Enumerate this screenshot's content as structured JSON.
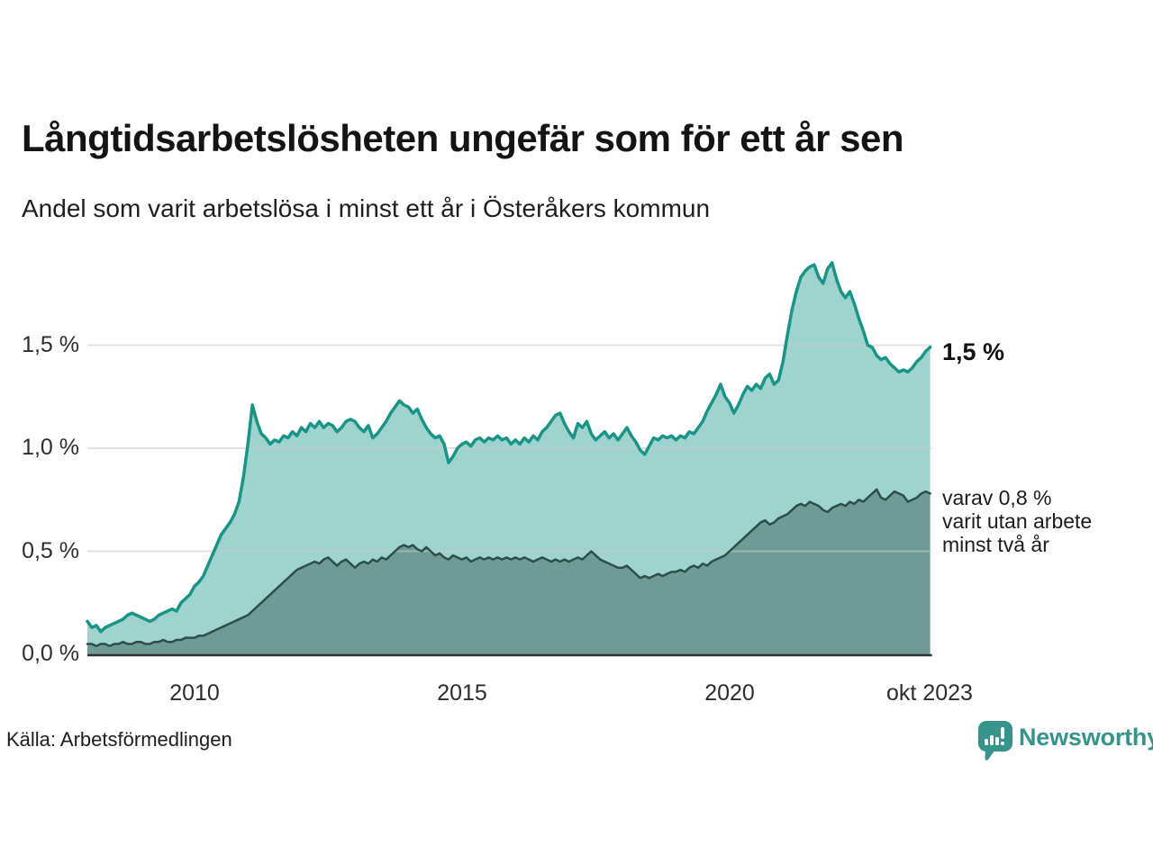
{
  "title": "Långtidsarbetslösheten ungefär som för ett år sen",
  "subtitle": "Andel som varit arbetslösa i minst ett år i Österåkers kommun",
  "source": "Källa: Arbetsförmedlingen",
  "brand": {
    "name": "Newsworthy",
    "color": "#37948b",
    "icon": "bar-chart-speech-bubble"
  },
  "annotations": {
    "latest_total": "1,5 %",
    "two_years_lines": [
      "varav 0,8 %",
      "varit utan arbete",
      "minst två år"
    ]
  },
  "chart_data": {
    "type": "area",
    "title": "Långtidsarbetslösheten ungefär som för ett år sen",
    "xlabel": "",
    "ylabel": "",
    "frequency": "monthly",
    "x_start": "jan 2008",
    "x_end": "okt 2023",
    "x_tick_labels": [
      "2010",
      "2015",
      "2020",
      "okt 2023"
    ],
    "x_tick_years": [
      2010.0,
      2015.0,
      2020.0,
      2023.75
    ],
    "y_tick_labels": [
      "0,0 %",
      "0,5 %",
      "1,0 %",
      "1,5 %"
    ],
    "y_tick_values": [
      0,
      0.5,
      1.0,
      1.5
    ],
    "ylim": [
      0,
      1.95
    ],
    "grid": true,
    "grid_color": "#c9c9c9",
    "axis_line_color": "#2f2f2f",
    "legend_position": "none",
    "series": [
      {
        "name": "Arbetslösa minst ett år",
        "line_color": "#1a9486",
        "fill_color": "#9fd4ce",
        "latest_value": 1.5,
        "values": [
          0.16,
          0.13,
          0.14,
          0.11,
          0.13,
          0.14,
          0.15,
          0.16,
          0.17,
          0.19,
          0.2,
          0.19,
          0.18,
          0.17,
          0.16,
          0.17,
          0.19,
          0.2,
          0.21,
          0.22,
          0.21,
          0.25,
          0.27,
          0.29,
          0.33,
          0.35,
          0.38,
          0.43,
          0.48,
          0.53,
          0.58,
          0.61,
          0.64,
          0.68,
          0.74,
          0.86,
          1.02,
          1.21,
          1.13,
          1.07,
          1.05,
          1.02,
          1.04,
          1.03,
          1.06,
          1.05,
          1.08,
          1.06,
          1.1,
          1.08,
          1.12,
          1.1,
          1.13,
          1.1,
          1.12,
          1.11,
          1.08,
          1.1,
          1.13,
          1.14,
          1.13,
          1.1,
          1.08,
          1.11,
          1.05,
          1.07,
          1.1,
          1.13,
          1.17,
          1.2,
          1.23,
          1.21,
          1.2,
          1.17,
          1.19,
          1.14,
          1.1,
          1.07,
          1.05,
          1.06,
          1.02,
          0.93,
          0.96,
          1.0,
          1.02,
          1.03,
          1.01,
          1.04,
          1.05,
          1.03,
          1.05,
          1.04,
          1.06,
          1.04,
          1.05,
          1.02,
          1.04,
          1.02,
          1.05,
          1.03,
          1.06,
          1.04,
          1.08,
          1.1,
          1.13,
          1.16,
          1.17,
          1.12,
          1.08,
          1.05,
          1.12,
          1.1,
          1.13,
          1.07,
          1.04,
          1.06,
          1.08,
          1.05,
          1.07,
          1.04,
          1.07,
          1.1,
          1.06,
          1.03,
          0.99,
          0.97,
          1.01,
          1.05,
          1.04,
          1.06,
          1.05,
          1.06,
          1.04,
          1.06,
          1.05,
          1.08,
          1.07,
          1.1,
          1.13,
          1.18,
          1.22,
          1.26,
          1.31,
          1.25,
          1.22,
          1.17,
          1.21,
          1.26,
          1.3,
          1.28,
          1.31,
          1.29,
          1.34,
          1.36,
          1.31,
          1.33,
          1.42,
          1.55,
          1.67,
          1.76,
          1.83,
          1.86,
          1.88,
          1.89,
          1.83,
          1.8,
          1.87,
          1.9,
          1.82,
          1.76,
          1.73,
          1.76,
          1.7,
          1.63,
          1.57,
          1.5,
          1.49,
          1.45,
          1.43,
          1.44,
          1.41,
          1.39,
          1.37,
          1.38,
          1.37,
          1.39,
          1.42,
          1.44,
          1.47,
          1.49
        ]
      },
      {
        "name": "varav utan arbete minst två år",
        "line_color": "#2c4e4b",
        "fill_color": "#6f9b97",
        "latest_value": 0.8,
        "values": [
          0.05,
          0.05,
          0.04,
          0.05,
          0.05,
          0.04,
          0.05,
          0.05,
          0.06,
          0.05,
          0.05,
          0.06,
          0.06,
          0.05,
          0.05,
          0.06,
          0.06,
          0.07,
          0.06,
          0.06,
          0.07,
          0.07,
          0.08,
          0.08,
          0.08,
          0.09,
          0.09,
          0.1,
          0.11,
          0.12,
          0.13,
          0.14,
          0.15,
          0.16,
          0.17,
          0.18,
          0.19,
          0.21,
          0.23,
          0.25,
          0.27,
          0.29,
          0.31,
          0.33,
          0.35,
          0.37,
          0.39,
          0.41,
          0.42,
          0.43,
          0.44,
          0.45,
          0.44,
          0.46,
          0.47,
          0.45,
          0.43,
          0.45,
          0.46,
          0.44,
          0.42,
          0.44,
          0.45,
          0.44,
          0.46,
          0.45,
          0.47,
          0.46,
          0.48,
          0.5,
          0.52,
          0.53,
          0.52,
          0.53,
          0.51,
          0.5,
          0.52,
          0.5,
          0.48,
          0.49,
          0.47,
          0.46,
          0.48,
          0.47,
          0.46,
          0.47,
          0.45,
          0.46,
          0.47,
          0.46,
          0.47,
          0.46,
          0.47,
          0.46,
          0.47,
          0.46,
          0.47,
          0.46,
          0.47,
          0.46,
          0.45,
          0.46,
          0.47,
          0.46,
          0.45,
          0.46,
          0.45,
          0.46,
          0.45,
          0.46,
          0.47,
          0.46,
          0.48,
          0.5,
          0.48,
          0.46,
          0.45,
          0.44,
          0.43,
          0.42,
          0.42,
          0.43,
          0.41,
          0.39,
          0.37,
          0.38,
          0.37,
          0.38,
          0.39,
          0.38,
          0.39,
          0.4,
          0.4,
          0.41,
          0.4,
          0.42,
          0.43,
          0.42,
          0.44,
          0.43,
          0.45,
          0.46,
          0.47,
          0.48,
          0.5,
          0.52,
          0.54,
          0.56,
          0.58,
          0.6,
          0.62,
          0.64,
          0.65,
          0.63,
          0.64,
          0.66,
          0.67,
          0.68,
          0.7,
          0.72,
          0.73,
          0.72,
          0.74,
          0.73,
          0.72,
          0.7,
          0.69,
          0.71,
          0.72,
          0.73,
          0.72,
          0.74,
          0.73,
          0.75,
          0.74,
          0.76,
          0.78,
          0.8,
          0.76,
          0.75,
          0.77,
          0.79,
          0.78,
          0.77,
          0.74,
          0.75,
          0.76,
          0.78,
          0.79,
          0.78
        ]
      }
    ]
  }
}
